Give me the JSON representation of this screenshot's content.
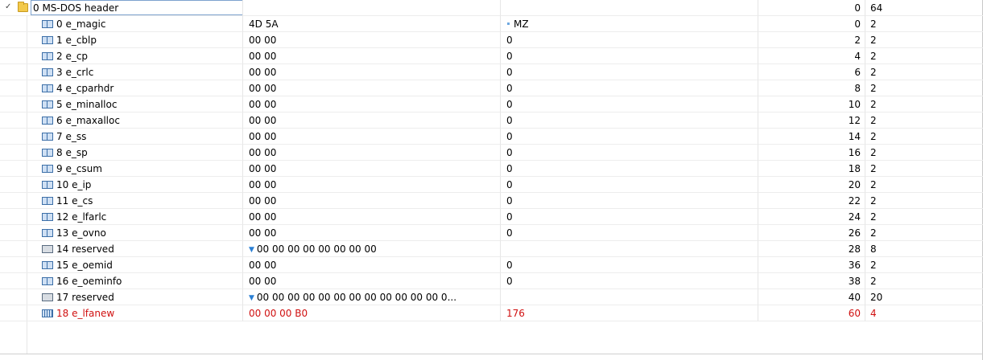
{
  "header": {
    "name": "0 MS-DOS header",
    "offset": "0",
    "size": "64"
  },
  "fields": [
    {
      "name": "0 e_magic",
      "value": "4D 5A",
      "desc": "MZ",
      "desc_marker": "dot",
      "offset": "0",
      "size": "2",
      "icon": "word",
      "highlight": false
    },
    {
      "name": "1 e_cblp",
      "value": "00 00",
      "desc": "0",
      "offset": "2",
      "size": "2",
      "icon": "word",
      "highlight": false
    },
    {
      "name": "2 e_cp",
      "value": "00 00",
      "desc": "0",
      "offset": "4",
      "size": "2",
      "icon": "word",
      "highlight": false
    },
    {
      "name": "3 e_crlc",
      "value": "00 00",
      "desc": "0",
      "offset": "6",
      "size": "2",
      "icon": "word",
      "highlight": false
    },
    {
      "name": "4 e_cparhdr",
      "value": "00 00",
      "desc": "0",
      "offset": "8",
      "size": "2",
      "icon": "word",
      "highlight": false
    },
    {
      "name": "5 e_minalloc",
      "value": "00 00",
      "desc": "0",
      "offset": "10",
      "size": "2",
      "icon": "word",
      "highlight": false
    },
    {
      "name": "6 e_maxalloc",
      "value": "00 00",
      "desc": "0",
      "offset": "12",
      "size": "2",
      "icon": "word",
      "highlight": false
    },
    {
      "name": "7 e_ss",
      "value": "00 00",
      "desc": "0",
      "offset": "14",
      "size": "2",
      "icon": "word",
      "highlight": false
    },
    {
      "name": "8 e_sp",
      "value": "00 00",
      "desc": "0",
      "offset": "16",
      "size": "2",
      "icon": "word",
      "highlight": false
    },
    {
      "name": "9 e_csum",
      "value": "00 00",
      "desc": "0",
      "offset": "18",
      "size": "2",
      "icon": "word",
      "highlight": false
    },
    {
      "name": "10 e_ip",
      "value": "00 00",
      "desc": "0",
      "offset": "20",
      "size": "2",
      "icon": "word",
      "highlight": false
    },
    {
      "name": "11 e_cs",
      "value": "00 00",
      "desc": "0",
      "offset": "22",
      "size": "2",
      "icon": "word",
      "highlight": false
    },
    {
      "name": "12 e_lfarlc",
      "value": "00 00",
      "desc": "0",
      "offset": "24",
      "size": "2",
      "icon": "word",
      "highlight": false
    },
    {
      "name": "13 e_ovno",
      "value": "00 00",
      "desc": "0",
      "offset": "26",
      "size": "2",
      "icon": "word",
      "highlight": false
    },
    {
      "name": "14 reserved",
      "value": "00 00 00 00 00 00 00 00",
      "value_marker": "triangle",
      "desc": "",
      "offset": "28",
      "size": "8",
      "icon": "array",
      "highlight": false
    },
    {
      "name": "15 e_oemid",
      "value": "00 00",
      "desc": "0",
      "offset": "36",
      "size": "2",
      "icon": "word",
      "highlight": false
    },
    {
      "name": "16 e_oeminfo",
      "value": "00 00",
      "desc": "0",
      "offset": "38",
      "size": "2",
      "icon": "word",
      "highlight": false
    },
    {
      "name": "17 reserved",
      "value": "00 00 00 00 00 00 00 00 00 00 00 00 0...",
      "value_marker": "triangle",
      "desc": "",
      "offset": "40",
      "size": "20",
      "icon": "array",
      "highlight": false
    },
    {
      "name": "18 e_lfanew",
      "value": "00 00 00 B0",
      "desc": "176",
      "offset": "60",
      "size": "4",
      "icon": "dword",
      "highlight": true
    }
  ],
  "colors": {
    "highlight": "#d01010",
    "marker": "#2a7fd4",
    "selection_border": "#7da2ce"
  }
}
